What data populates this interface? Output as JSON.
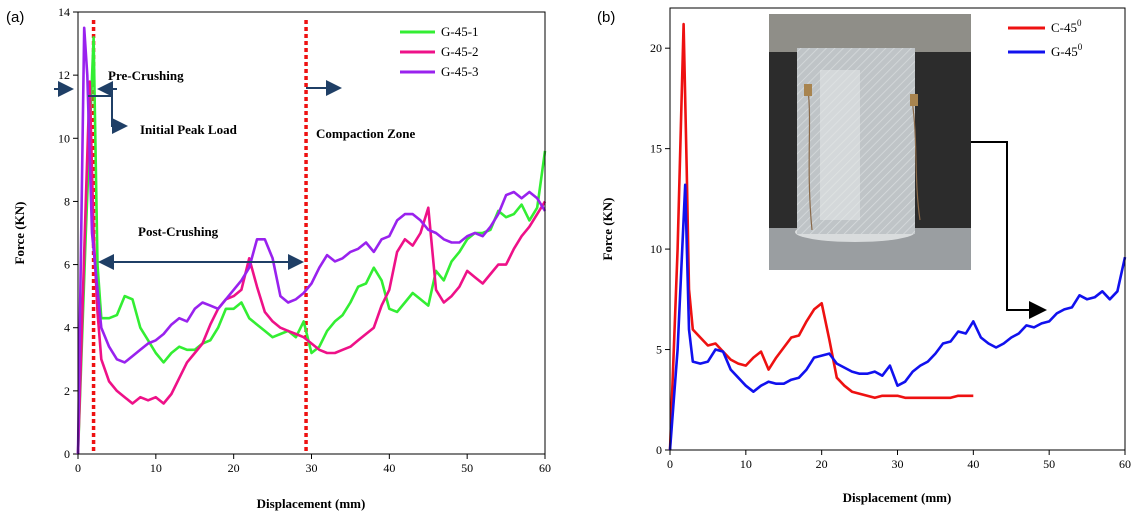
{
  "colors": {
    "G-45-1": "#33ee33",
    "G-45-2": "#ee1188",
    "G-45-3": "#9922ee",
    "C-45": "#ee1111",
    "G-45": "#1111ee",
    "marker": "#ee1111",
    "arrow": "#1f3f66"
  },
  "chart_data": [
    {
      "type": "line",
      "panel_label": "(a)",
      "xlabel": "Displacement (mm)",
      "ylabel": "Force (KN)",
      "xlim": [
        0,
        60
      ],
      "ylim": [
        0,
        14
      ],
      "xticks": [
        0,
        10,
        20,
        30,
        40,
        50,
        60
      ],
      "yticks": [
        0,
        2,
        4,
        6,
        8,
        10,
        12,
        14
      ],
      "legend_position": "top-right",
      "annotations": {
        "pre_crushing": "Pre-Crushing",
        "initial_peak": "Initial Peak Load",
        "compaction": "Compaction Zone",
        "post_crushing": "Post-Crushing"
      },
      "markers_x": [
        2,
        29.3
      ],
      "series": [
        {
          "name": "G-45-1",
          "x": [
            0,
            1,
            2,
            2.5,
            3,
            4,
            5,
            6,
            7,
            8,
            9,
            10,
            11,
            12,
            13,
            14,
            15,
            16,
            17,
            18,
            19,
            20,
            21,
            22,
            23,
            24,
            25,
            26,
            27,
            28,
            29,
            30,
            31,
            32,
            33,
            34,
            35,
            36,
            37,
            38,
            39,
            40,
            41,
            42,
            43,
            44,
            45,
            46,
            47,
            48,
            49,
            50,
            51,
            52,
            53,
            54,
            55,
            56,
            57,
            58,
            59,
            60
          ],
          "y": [
            0,
            7,
            13.2,
            6,
            4.3,
            4.3,
            4.4,
            5.0,
            4.9,
            4.0,
            3.6,
            3.2,
            2.9,
            3.2,
            3.4,
            3.3,
            3.3,
            3.5,
            3.6,
            4.0,
            4.6,
            4.6,
            4.8,
            4.3,
            4.1,
            3.9,
            3.7,
            3.8,
            3.9,
            3.7,
            4.2,
            3.2,
            3.4,
            3.9,
            4.2,
            4.4,
            4.8,
            5.3,
            5.4,
            5.9,
            5.5,
            4.6,
            4.5,
            4.8,
            5.1,
            4.9,
            4.7,
            5.8,
            5.5,
            6.1,
            6.4,
            6.8,
            7.0,
            7.0,
            7.1,
            7.7,
            7.5,
            7.6,
            7.9,
            7.4,
            7.8,
            9.6
          ]
        },
        {
          "name": "G-45-2",
          "x": [
            0,
            1,
            1.5,
            2,
            2.5,
            3,
            4,
            5,
            6,
            7,
            8,
            9,
            10,
            11,
            12,
            13,
            14,
            15,
            16,
            17,
            18,
            19,
            20,
            21,
            22,
            23,
            24,
            25,
            26,
            27,
            28,
            29,
            30,
            31,
            32,
            33,
            34,
            35,
            36,
            37,
            38,
            39,
            40,
            41,
            42,
            43,
            44,
            45,
            46,
            47,
            48,
            49,
            50,
            51,
            52,
            53,
            54,
            55,
            56,
            57,
            58,
            59,
            60
          ],
          "y": [
            0,
            8,
            11.8,
            7,
            4.5,
            3.0,
            2.3,
            2.0,
            1.8,
            1.6,
            1.8,
            1.7,
            1.8,
            1.6,
            1.9,
            2.4,
            2.9,
            3.2,
            3.5,
            4.1,
            4.6,
            4.9,
            5.0,
            5.2,
            6.2,
            5.3,
            4.5,
            4.2,
            4.0,
            3.9,
            3.8,
            3.7,
            3.5,
            3.3,
            3.2,
            3.2,
            3.3,
            3.4,
            3.6,
            3.8,
            4.0,
            4.7,
            5.2,
            6.4,
            6.8,
            6.6,
            7.0,
            7.8,
            5.2,
            4.8,
            5.0,
            5.3,
            5.8,
            5.6,
            5.4,
            5.7,
            6.0,
            6.0,
            6.5,
            6.9,
            7.2,
            7.6,
            8.0
          ]
        },
        {
          "name": "G-45-3",
          "x": [
            0,
            0.8,
            1.2,
            1.8,
            2.5,
            3,
            4,
            5,
            6,
            7,
            8,
            9,
            10,
            11,
            12,
            13,
            14,
            15,
            16,
            17,
            18,
            19,
            20,
            21,
            22,
            23,
            24,
            25,
            26,
            27,
            28,
            29,
            30,
            31,
            32,
            33,
            34,
            35,
            36,
            37,
            38,
            39,
            40,
            41,
            42,
            43,
            44,
            45,
            46,
            47,
            48,
            49,
            50,
            51,
            52,
            53,
            54,
            55,
            56,
            57,
            58,
            59,
            60
          ],
          "y": [
            0,
            13.5,
            12,
            7,
            5.2,
            4.0,
            3.4,
            3.0,
            2.9,
            3.1,
            3.3,
            3.5,
            3.6,
            3.8,
            4.1,
            4.3,
            4.2,
            4.6,
            4.8,
            4.7,
            4.6,
            4.9,
            5.2,
            5.5,
            5.9,
            6.8,
            6.8,
            6.2,
            5.0,
            4.8,
            4.9,
            5.1,
            5.4,
            5.9,
            6.3,
            6.1,
            6.2,
            6.4,
            6.5,
            6.7,
            6.4,
            6.8,
            6.9,
            7.4,
            7.6,
            7.6,
            7.4,
            7.1,
            7.0,
            6.8,
            6.7,
            6.7,
            6.9,
            7.0,
            6.9,
            7.2,
            7.6,
            8.2,
            8.3,
            8.1,
            8.3,
            8.1,
            7.7
          ]
        }
      ]
    },
    {
      "type": "line",
      "panel_label": "(b)",
      "xlabel": "Displacement (mm)",
      "ylabel": "Force (KN)",
      "xlim": [
        0,
        60
      ],
      "ylim": [
        0,
        22
      ],
      "xticks": [
        0,
        10,
        20,
        30,
        40,
        50,
        60
      ],
      "yticks": [
        0,
        5,
        10,
        15,
        20
      ],
      "legend_position": "top-right",
      "inset": "photo of tubular specimen under compression",
      "series": [
        {
          "name": "C-45",
          "x": [
            0,
            1,
            1.8,
            2.2,
            2.5,
            3,
            4,
            5,
            6,
            7,
            8,
            9,
            10,
            11,
            12,
            13,
            14,
            15,
            16,
            17,
            18,
            19,
            20,
            21,
            22,
            23,
            24,
            25,
            26,
            27,
            28,
            29,
            30,
            31,
            32,
            33,
            34,
            35,
            36,
            37,
            38,
            39,
            40
          ],
          "y": [
            0,
            10,
            21.2,
            14,
            8,
            6.0,
            5.6,
            5.2,
            5.3,
            4.9,
            4.5,
            4.3,
            4.2,
            4.6,
            4.9,
            4.0,
            4.6,
            5.1,
            5.6,
            5.7,
            6.4,
            7.0,
            7.3,
            5.5,
            3.6,
            3.2,
            2.9,
            2.8,
            2.7,
            2.6,
            2.7,
            2.7,
            2.7,
            2.6,
            2.6,
            2.6,
            2.6,
            2.6,
            2.6,
            2.6,
            2.7,
            2.7,
            2.7
          ]
        },
        {
          "name": "G-45",
          "x": [
            0,
            1,
            2,
            2.5,
            3,
            4,
            5,
            6,
            7,
            8,
            9,
            10,
            11,
            12,
            13,
            14,
            15,
            16,
            17,
            18,
            19,
            20,
            21,
            22,
            23,
            24,
            25,
            26,
            27,
            28,
            29,
            30,
            31,
            32,
            33,
            34,
            35,
            36,
            37,
            38,
            39,
            40,
            41,
            42,
            43,
            44,
            45,
            46,
            47,
            48,
            49,
            50,
            51,
            52,
            53,
            54,
            55,
            56,
            57,
            58,
            59,
            60
          ],
          "y": [
            0,
            5,
            13.2,
            6,
            4.4,
            4.3,
            4.4,
            5.0,
            4.9,
            4.0,
            3.6,
            3.2,
            2.9,
            3.2,
            3.4,
            3.3,
            3.3,
            3.5,
            3.6,
            4.0,
            4.6,
            4.7,
            4.8,
            4.3,
            4.1,
            3.9,
            3.8,
            3.8,
            3.9,
            3.7,
            4.2,
            3.2,
            3.4,
            3.9,
            4.2,
            4.4,
            4.8,
            5.3,
            5.4,
            5.9,
            5.8,
            6.4,
            5.6,
            5.3,
            5.1,
            5.3,
            5.6,
            5.8,
            6.2,
            6.1,
            6.3,
            6.4,
            6.8,
            7.0,
            7.1,
            7.7,
            7.5,
            7.6,
            7.9,
            7.5,
            7.9,
            9.6
          ]
        }
      ]
    }
  ]
}
